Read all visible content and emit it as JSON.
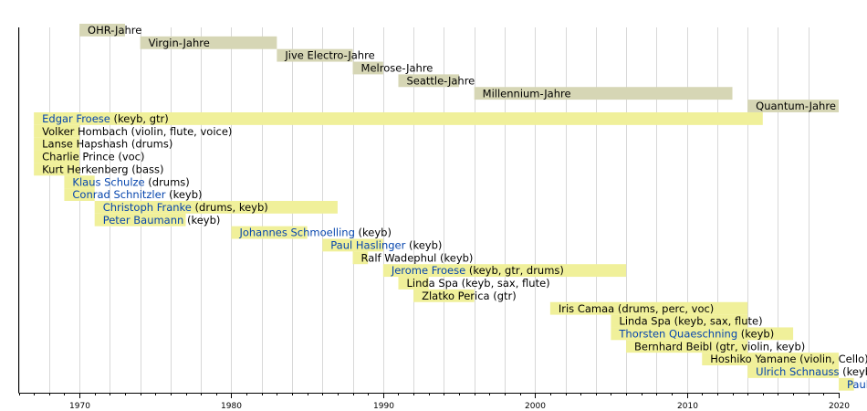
{
  "chart_data": {
    "type": "bar",
    "title": "",
    "xlabel": "",
    "ylabel": "",
    "xlim": [
      1966.0,
      2020
    ],
    "x_ticks": [
      1970,
      1980,
      1990,
      2000,
      2010,
      2020
    ],
    "grid": true,
    "colors": {
      "era": "#d6d6b5",
      "member": "#f0f09a",
      "link": "#0645ad",
      "axis": "#000000",
      "grid": "#d8d8d8"
    },
    "eras": [
      {
        "label": "OHR-Jahre",
        "start": 1970,
        "end": 1973
      },
      {
        "label": "Virgin-Jahre",
        "start": 1974,
        "end": 1983
      },
      {
        "label": "Jive Electro-Jahre",
        "start": 1983,
        "end": 1988
      },
      {
        "label": "Melrose-Jahre",
        "start": 1988,
        "end": 1990
      },
      {
        "label": "Seattle-Jahre",
        "start": 1991,
        "end": 1995
      },
      {
        "label": "Millennium-Jahre",
        "start": 1996,
        "end": 2013
      },
      {
        "label": "Quantum-Jahre",
        "start": 2014,
        "end": 2020
      }
    ],
    "members": [
      {
        "name": "Edgar Froese",
        "role": " (keyb, gtr)",
        "link": true,
        "start": 1967,
        "end": 2015
      },
      {
        "name": "Volker Hombach (violin, flute, voice)",
        "role": "",
        "link": false,
        "start": 1967,
        "end": 1970
      },
      {
        "name": "Lanse Hapshash (drums)",
        "role": "",
        "link": false,
        "start": 1967,
        "end": 1970
      },
      {
        "name": "Charlie Prince (voc)",
        "role": "",
        "link": false,
        "start": 1967,
        "end": 1970
      },
      {
        "name": "Kurt Herkenberg (bass)",
        "role": "",
        "link": false,
        "start": 1967,
        "end": 1970
      },
      {
        "name": "Klaus Schulze",
        "role": " (drums)",
        "link": true,
        "start": 1969,
        "end": 1971
      },
      {
        "name": "Conrad Schnitzler",
        "role": " (keyb)",
        "link": true,
        "start": 1969,
        "end": 1971
      },
      {
        "name": "Christoph Franke",
        "role": " (drums, keyb)",
        "link": true,
        "start": 1971,
        "end": 1987
      },
      {
        "name": "Peter Baumann",
        "role": " (keyb)",
        "link": true,
        "start": 1971,
        "end": 1977
      },
      {
        "name": "Johannes Schmoelling",
        "role": " (keyb)",
        "link": true,
        "start": 1980,
        "end": 1985
      },
      {
        "name": "Paul Haslinger",
        "role": " (keyb)",
        "link": true,
        "start": 1986,
        "end": 1990
      },
      {
        "name": "Ralf Wadephul (keyb)",
        "role": "",
        "link": false,
        "start": 1988,
        "end": 1988
      },
      {
        "name": "Jerome Froese",
        "role": " (keyb, gtr, drums)",
        "link": true,
        "start": 1990,
        "end": 2006
      },
      {
        "name": "Linda Spa (keyb, sax, flute)",
        "role": "",
        "link": false,
        "start": 1991,
        "end": 1993
      },
      {
        "name": "Zlatko Perica (gtr)",
        "role": "",
        "link": false,
        "start": 1992,
        "end": 1996
      },
      {
        "name": "Iris Camaa (drums, perc, voc)",
        "role": "",
        "link": false,
        "start": 2001,
        "end": 2014
      },
      {
        "name": "Linda Spa (keyb, sax, flute)",
        "role": "",
        "link": false,
        "start": 2005,
        "end": 2014
      },
      {
        "name": "Thorsten Quaeschning",
        "role": " (keyb)",
        "link": true,
        "start": 2005,
        "end": 2017
      },
      {
        "name": "Bernhard Beibl (gtr, violin, keyb)",
        "role": "",
        "link": false,
        "start": 2006,
        "end": 2014
      },
      {
        "name": "Hoshiko Yamane (violin, Cello)",
        "role": "",
        "link": false,
        "start": 2011,
        "end": 2020
      },
      {
        "name": "Ulrich Schnauss",
        "role": " (keyb)",
        "link": true,
        "start": 2014,
        "end": 2020
      },
      {
        "name": "Paul",
        "role": "",
        "link": true,
        "start": 2020,
        "end": 2020
      }
    ]
  }
}
